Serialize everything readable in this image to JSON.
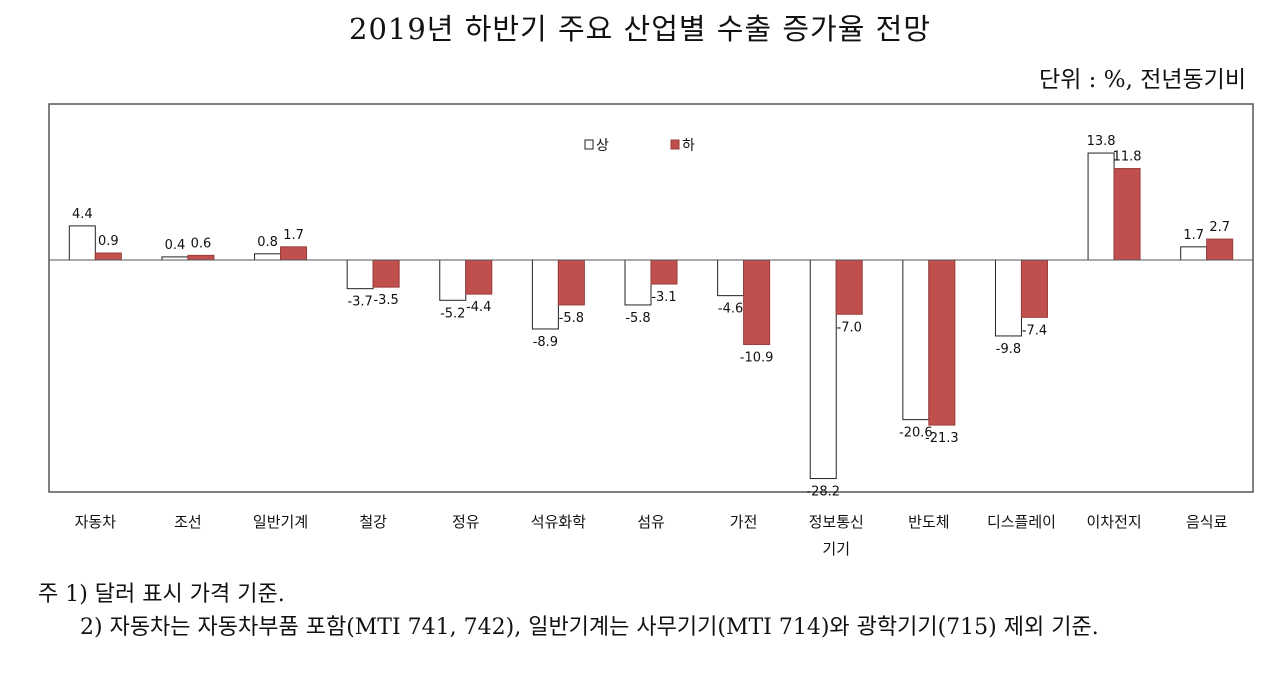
{
  "title": "2019년 하반기 주요 산업별 수출 증가율 전망",
  "unit": "단위 : %, 전년동기비",
  "notes": [
    "주 1) 달러 표시 가격 기준.",
    "2) 자동차는 자동차부품 포함(MTI 741, 742), 일반기계는 사무기기(MTI 714)와 광학기기(715) 제외 기준."
  ],
  "chart_data": {
    "type": "bar",
    "categories": [
      [
        "자동차"
      ],
      [
        "조선"
      ],
      [
        "일반기계"
      ],
      [
        "철강"
      ],
      [
        "정유"
      ],
      [
        "석유화학"
      ],
      [
        "섬유"
      ],
      [
        "가전"
      ],
      [
        "정보통신",
        "기기"
      ],
      [
        "반도체"
      ],
      [
        "디스플레이"
      ],
      [
        "이차전지"
      ],
      [
        "음식료"
      ]
    ],
    "series": [
      {
        "name": "상",
        "values": [
          4.4,
          0.4,
          0.8,
          -3.7,
          -5.2,
          -8.9,
          -5.8,
          -4.6,
          -28.2,
          -20.6,
          -9.8,
          13.8,
          1.7
        ],
        "color": "#ffffff",
        "stroke": "#222222"
      },
      {
        "name": "하",
        "values": [
          0.9,
          0.6,
          1.7,
          -3.5,
          -4.4,
          -5.8,
          -3.1,
          -10.9,
          -7.0,
          -21.3,
          -7.4,
          11.8,
          2.7
        ],
        "color": "#c0504d",
        "stroke": "#9b3b39"
      }
    ],
    "legend": "top-center",
    "grid": false,
    "ylim": [
      -30,
      15
    ]
  }
}
